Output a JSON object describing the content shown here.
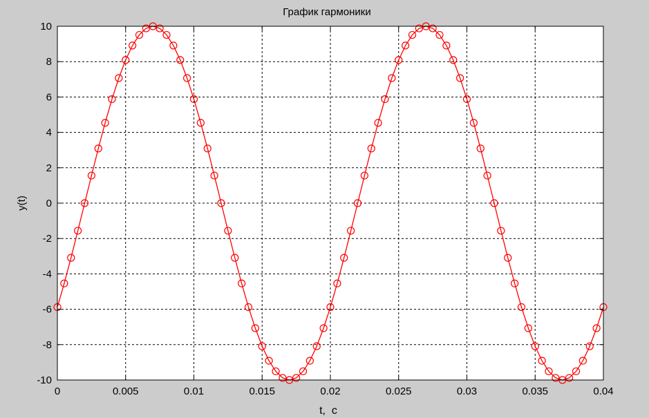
{
  "chart_data": {
    "type": "line",
    "title": "График гармоники",
    "xlabel": "t,  c",
    "ylabel": "y(t)",
    "xlim": [
      0,
      0.04
    ],
    "ylim": [
      -10,
      10
    ],
    "grid": true,
    "xticks": [
      0,
      0.005,
      0.01,
      0.015,
      0.02,
      0.025,
      0.03,
      0.035,
      0.04
    ],
    "xtick_labels": [
      "0",
      "0.005",
      "0.01",
      "0.015",
      "0.02",
      "0.025",
      "0.03",
      "0.035",
      "0.04"
    ],
    "yticks": [
      10,
      8,
      6,
      4,
      2,
      0,
      -2,
      -4,
      -6,
      -8,
      -10
    ],
    "ytick_labels": [
      "10",
      "8",
      "6",
      "4",
      "2",
      "0",
      "-2",
      "-4",
      "-6",
      "-8",
      "-10"
    ],
    "series": [
      {
        "color": "#ff0000",
        "marker": "circle",
        "x": [
          0,
          0.0005,
          0.001,
          0.0015,
          0.002,
          0.0025,
          0.003,
          0.0035,
          0.004,
          0.0045,
          0.005,
          0.0055,
          0.006,
          0.0065,
          0.007,
          0.0075,
          0.008,
          0.0085,
          0.009,
          0.0095,
          0.01,
          0.0105,
          0.011,
          0.0115,
          0.012,
          0.0125,
          0.013,
          0.0135,
          0.014,
          0.0145,
          0.015,
          0.0155,
          0.016,
          0.0165,
          0.017,
          0.0175,
          0.018,
          0.0185,
          0.019,
          0.0195,
          0.02,
          0.0205,
          0.021,
          0.0215,
          0.022,
          0.0225,
          0.023,
          0.0235,
          0.024,
          0.0245,
          0.025,
          0.0255,
          0.026,
          0.0265,
          0.027,
          0.0275,
          0.028,
          0.0285,
          0.029,
          0.0295,
          0.03,
          0.0305,
          0.031,
          0.0315,
          0.032,
          0.0325,
          0.033,
          0.0335,
          0.034,
          0.0345,
          0.035,
          0.0355,
          0.036,
          0.0365,
          0.037,
          0.0375,
          0.038,
          0.0385,
          0.039,
          0.0395,
          0.04
        ],
        "y": [
          -5.88,
          -4.54,
          -3.09,
          -1.56,
          0.0,
          1.56,
          3.09,
          4.54,
          5.88,
          7.07,
          8.09,
          8.91,
          9.51,
          9.88,
          10.0,
          9.88,
          9.51,
          8.91,
          8.09,
          7.07,
          5.88,
          4.54,
          3.09,
          1.56,
          0.0,
          -1.56,
          -3.09,
          -4.54,
          -5.88,
          -7.07,
          -8.09,
          -8.91,
          -9.51,
          -9.88,
          -10.0,
          -9.88,
          -9.51,
          -8.91,
          -8.09,
          -7.07,
          -5.88,
          -4.54,
          -3.09,
          -1.56,
          0.0,
          1.56,
          3.09,
          4.54,
          5.88,
          7.07,
          8.09,
          8.91,
          9.51,
          9.88,
          10.0,
          9.88,
          9.51,
          8.91,
          8.09,
          7.07,
          5.88,
          4.54,
          3.09,
          1.56,
          0.0,
          -1.56,
          -3.09,
          -4.54,
          -5.88,
          -7.07,
          -8.09,
          -8.91,
          -9.51,
          -9.88,
          -10.0,
          -9.88,
          -9.51,
          -8.91,
          -8.09,
          -7.07,
          -5.88
        ]
      }
    ]
  }
}
